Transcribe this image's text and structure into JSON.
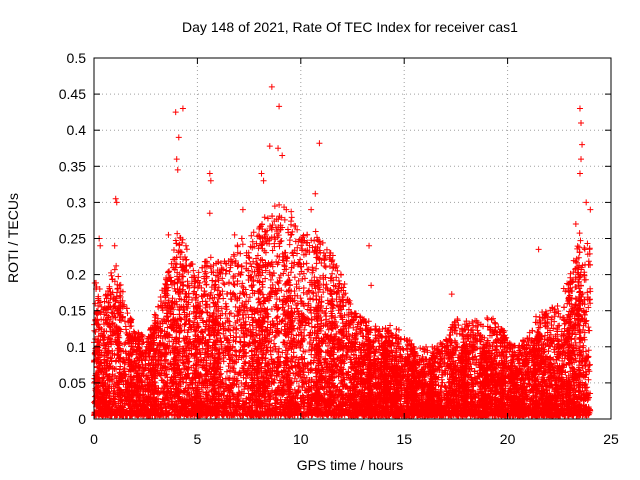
{
  "chart_data": {
    "type": "scatter",
    "title": "Day 148 of 2021, Rate Of TEC Index for receiver cas1",
    "xlabel": "GPS time / hours",
    "ylabel": "ROTI / TECUs",
    "xlim": [
      0,
      25
    ],
    "ylim": [
      0,
      0.5
    ],
    "x_ticks": [
      0,
      5,
      10,
      15,
      20,
      25
    ],
    "x_tick_labels": [
      "0",
      "5",
      "10",
      "15",
      "20",
      "25"
    ],
    "y_ticks": [
      0,
      0.05,
      0.1,
      0.15,
      0.2,
      0.25,
      0.3,
      0.35,
      0.4,
      0.45,
      0.5
    ],
    "y_tick_labels": [
      "0",
      "0.05",
      "0.1",
      "0.15",
      "0.2",
      "0.25",
      "0.3",
      "0.35",
      "0.4",
      "0.45",
      "0.5"
    ],
    "grid": true,
    "marker": "plus",
    "color": "#ff0000",
    "notable_points": [
      {
        "x": 0.1,
        "y": 0.18
      },
      {
        "x": 0.25,
        "y": 0.25
      },
      {
        "x": 0.3,
        "y": 0.24
      },
      {
        "x": 1.05,
        "y": 0.305
      },
      {
        "x": 1.1,
        "y": 0.3
      },
      {
        "x": 1.0,
        "y": 0.24
      },
      {
        "x": 3.95,
        "y": 0.425
      },
      {
        "x": 4.3,
        "y": 0.43
      },
      {
        "x": 4.1,
        "y": 0.39
      },
      {
        "x": 4.0,
        "y": 0.36
      },
      {
        "x": 4.05,
        "y": 0.345
      },
      {
        "x": 3.6,
        "y": 0.255
      },
      {
        "x": 5.6,
        "y": 0.34
      },
      {
        "x": 5.65,
        "y": 0.33
      },
      {
        "x": 5.6,
        "y": 0.285
      },
      {
        "x": 6.8,
        "y": 0.255
      },
      {
        "x": 7.2,
        "y": 0.29
      },
      {
        "x": 8.1,
        "y": 0.34
      },
      {
        "x": 8.2,
        "y": 0.33
      },
      {
        "x": 8.6,
        "y": 0.46
      },
      {
        "x": 8.95,
        "y": 0.433
      },
      {
        "x": 8.5,
        "y": 0.378
      },
      {
        "x": 8.9,
        "y": 0.375
      },
      {
        "x": 9.1,
        "y": 0.365
      },
      {
        "x": 9.3,
        "y": 0.29
      },
      {
        "x": 10.9,
        "y": 0.382
      },
      {
        "x": 10.7,
        "y": 0.312
      },
      {
        "x": 10.5,
        "y": 0.29
      },
      {
        "x": 13.3,
        "y": 0.24
      },
      {
        "x": 13.4,
        "y": 0.185
      },
      {
        "x": 17.3,
        "y": 0.173
      },
      {
        "x": 21.5,
        "y": 0.235
      },
      {
        "x": 23.5,
        "y": 0.43
      },
      {
        "x": 23.55,
        "y": 0.41
      },
      {
        "x": 23.6,
        "y": 0.38
      },
      {
        "x": 23.55,
        "y": 0.36
      },
      {
        "x": 23.5,
        "y": 0.34
      },
      {
        "x": 23.8,
        "y": 0.3
      },
      {
        "x": 24.0,
        "y": 0.29
      },
      {
        "x": 23.3,
        "y": 0.27
      }
    ],
    "density_profile": {
      "x_hours": [
        0,
        0.5,
        1,
        1.5,
        2,
        2.5,
        3,
        3.5,
        4,
        4.5,
        5,
        5.5,
        6,
        6.5,
        7,
        7.5,
        8,
        8.5,
        9,
        9.5,
        10,
        10.5,
        11,
        11.5,
        12,
        12.5,
        13,
        13.5,
        14,
        14.5,
        15,
        15.5,
        16,
        16.5,
        17,
        17.5,
        18,
        18.5,
        19,
        19.5,
        20,
        20.5,
        21,
        21.5,
        22,
        22.5,
        23,
        23.5,
        24
      ],
      "upper_envelope": [
        0.2,
        0.17,
        0.22,
        0.17,
        0.12,
        0.12,
        0.15,
        0.2,
        0.26,
        0.24,
        0.2,
        0.23,
        0.22,
        0.22,
        0.25,
        0.25,
        0.27,
        0.29,
        0.3,
        0.29,
        0.26,
        0.27,
        0.25,
        0.23,
        0.2,
        0.15,
        0.14,
        0.13,
        0.13,
        0.13,
        0.12,
        0.1,
        0.1,
        0.1,
        0.12,
        0.14,
        0.13,
        0.14,
        0.14,
        0.14,
        0.11,
        0.1,
        0.12,
        0.15,
        0.15,
        0.17,
        0.2,
        0.26,
        0.24
      ],
      "lower_bound": 0.005
    }
  }
}
